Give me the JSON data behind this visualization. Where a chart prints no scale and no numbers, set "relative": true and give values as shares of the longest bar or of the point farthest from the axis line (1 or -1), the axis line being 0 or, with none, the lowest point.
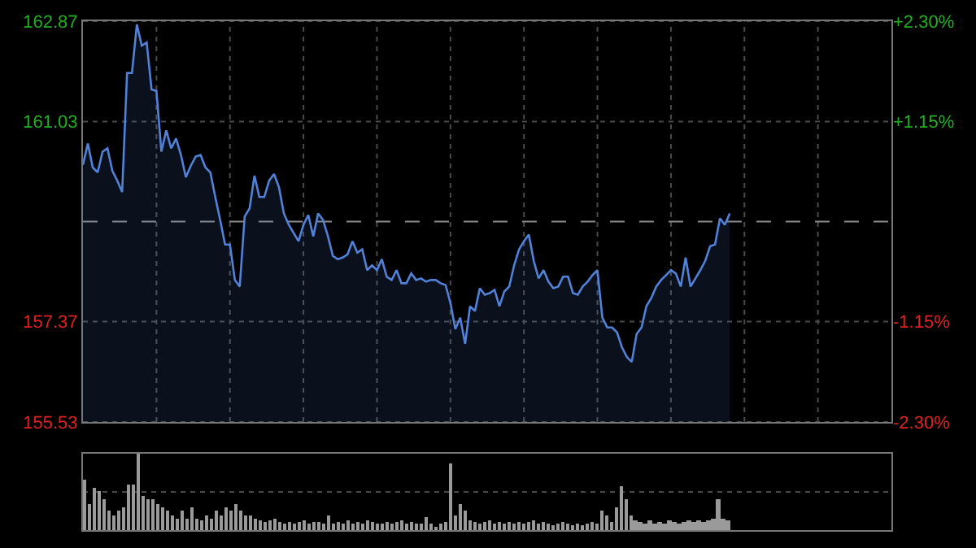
{
  "chart_data": [
    {
      "type": "area",
      "categories": [
        null,
        null,
        null,
        null,
        null,
        null,
        null,
        null,
        null,
        null,
        null,
        null,
        null,
        null,
        null,
        null,
        null,
        null,
        null,
        null,
        null,
        null,
        null,
        null,
        null,
        null,
        null,
        null,
        null,
        null,
        null,
        null,
        null,
        null,
        null,
        null,
        null,
        null,
        null,
        null,
        null,
        null,
        null,
        null,
        null,
        null,
        null,
        null,
        null,
        null,
        null,
        null,
        null,
        null,
        null,
        null,
        null,
        null,
        null,
        null,
        null,
        null,
        null,
        null,
        null,
        null,
        null,
        null,
        null,
        null,
        null,
        null,
        null,
        null,
        null,
        null,
        null,
        null,
        null,
        null,
        null,
        null,
        null,
        null,
        null,
        null,
        null,
        null,
        null,
        null,
        null,
        null,
        null,
        null,
        null,
        null,
        null,
        null,
        null,
        null,
        null,
        null,
        null,
        null,
        null,
        null,
        null,
        null,
        null,
        null,
        null,
        null,
        null,
        null,
        null,
        null,
        null,
        null,
        null,
        null,
        null,
        null,
        null,
        null,
        null,
        null,
        null,
        null,
        null,
        null,
        null,
        null,
        null,
        null,
        null,
        null,
        null,
        null,
        null,
        null,
        null,
        null,
        null,
        null,
        null,
        null,
        null,
        null,
        null,
        null,
        null,
        null,
        null,
        null,
        null,
        null,
        null,
        null,
        null,
        null,
        null,
        null,
        null,
        null,
        null,
        null
      ],
      "series": [
        {
          "color": "#4f82d8",
          "values": [
            160.24,
            160.63,
            160.19,
            160.1,
            160.48,
            160.54,
            160.13,
            159.95,
            159.74,
            161.92,
            161.92,
            162.81,
            162.42,
            162.48,
            161.62,
            161.59,
            160.48,
            160.87,
            160.54,
            160.72,
            160.42,
            160.01,
            160.22,
            160.39,
            160.42,
            160.19,
            160.1,
            159.65,
            159.23,
            158.78,
            158.78,
            158.13,
            158.01,
            159.29,
            159.44,
            160.04,
            159.65,
            159.65,
            159.95,
            160.07,
            159.83,
            159.35,
            159.14,
            158.99,
            158.84,
            159.14,
            159.32,
            158.93,
            159.35,
            159.23,
            158.93,
            158.57,
            158.51,
            158.54,
            158.6,
            158.84,
            158.63,
            158.69,
            158.31,
            158.4,
            158.31,
            158.51,
            158.19,
            158.13,
            158.31,
            158.07,
            158.07,
            158.25,
            158.13,
            158.16,
            158.1,
            158.13,
            158.13,
            158.07,
            158.04,
            157.71,
            157.23,
            157.44,
            156.96,
            157.65,
            157.56,
            157.98,
            157.86,
            157.89,
            157.95,
            157.65,
            157.92,
            158.01,
            158.4,
            158.69,
            158.84,
            158.96,
            158.48,
            158.16,
            158.31,
            158.1,
            157.98,
            158.01,
            158.19,
            158.19,
            157.89,
            157.86,
            158.01,
            158.1,
            158.22,
            158.31,
            157.44,
            157.26,
            157.26,
            157.17,
            156.9,
            156.72,
            156.63,
            157.14,
            157.26,
            157.65,
            157.8,
            158.01,
            158.13,
            158.22,
            158.31,
            158.25,
            158.01,
            158.54,
            158.01,
            158.16,
            158.31,
            158.48,
            158.75,
            158.78,
            159.26,
            159.14,
            159.35,
            null,
            null,
            null,
            null,
            null,
            null,
            null,
            null,
            null,
            null,
            null,
            null,
            null,
            null,
            null,
            null,
            null,
            null,
            null,
            null,
            null,
            null,
            null,
            null,
            null,
            null,
            null,
            null,
            null,
            null,
            null,
            null,
            null
          ]
        }
      ],
      "ylim": [
        155.53,
        162.87
      ],
      "yticks": [
        155.53,
        157.37,
        161.03,
        162.87
      ],
      "y2lim": [
        -2.3,
        2.3
      ],
      "y2ticks": [
        {
          "value": 2.3,
          "label": "+2.30%"
        },
        {
          "value": 1.15,
          "label": "+1.15%"
        },
        {
          "value": -1.15,
          "label": "-1.15%"
        },
        {
          "value": -2.3,
          "label": "-2.30%"
        }
      ],
      "ref_lines": [
        {
          "axis": "y",
          "value": 159.2,
          "line_style": "dashed"
        }
      ],
      "grid": true,
      "tick_labels": "y"
    },
    {
      "type": "bar",
      "relative": true,
      "categories": [
        null,
        null,
        null,
        null,
        null,
        null,
        null,
        null,
        null,
        null,
        null,
        null,
        null,
        null,
        null,
        null,
        null,
        null,
        null,
        null,
        null,
        null,
        null,
        null,
        null,
        null,
        null,
        null,
        null,
        null,
        null,
        null,
        null,
        null,
        null,
        null,
        null,
        null,
        null,
        null,
        null,
        null,
        null,
        null,
        null,
        null,
        null,
        null,
        null,
        null,
        null,
        null,
        null,
        null,
        null,
        null,
        null,
        null,
        null,
        null,
        null,
        null,
        null,
        null,
        null,
        null,
        null,
        null,
        null,
        null,
        null,
        null,
        null,
        null,
        null,
        null,
        null,
        null,
        null,
        null,
        null,
        null,
        null,
        null,
        null,
        null,
        null,
        null,
        null,
        null,
        null,
        null,
        null,
        null,
        null,
        null,
        null,
        null,
        null,
        null,
        null,
        null,
        null,
        null,
        null,
        null,
        null,
        null,
        null,
        null,
        null,
        null,
        null,
        null,
        null,
        null,
        null,
        null,
        null,
        null,
        null,
        null,
        null,
        null,
        null,
        null,
        null,
        null,
        null,
        null,
        null,
        null,
        null,
        null,
        null,
        null,
        null,
        null,
        null,
        null,
        null,
        null,
        null,
        null,
        null,
        null,
        null,
        null,
        null,
        null,
        null,
        null,
        null,
        null,
        null,
        null,
        null,
        null,
        null,
        null,
        null,
        null,
        null,
        null,
        null,
        null
      ],
      "series": [
        {
          "color": "#9a9a9a",
          "values": [
            0.65,
            0.35,
            0.55,
            0.5,
            0.4,
            0.25,
            0.2,
            0.25,
            0.3,
            0.6,
            0.6,
            1.0,
            0.45,
            0.4,
            0.4,
            0.35,
            0.3,
            0.25,
            0.2,
            0.15,
            0.25,
            0.15,
            0.3,
            0.15,
            0.12,
            0.2,
            0.15,
            0.25,
            0.2,
            0.3,
            0.25,
            0.35,
            0.25,
            0.2,
            0.2,
            0.15,
            0.12,
            0.1,
            0.12,
            0.15,
            0.1,
            0.08,
            0.1,
            0.08,
            0.1,
            0.12,
            0.08,
            0.1,
            0.1,
            0.08,
            0.2,
            0.08,
            0.1,
            0.08,
            0.12,
            0.08,
            0.1,
            0.08,
            0.12,
            0.1,
            0.08,
            0.08,
            0.1,
            0.08,
            0.1,
            0.12,
            0.08,
            0.1,
            0.08,
            0.08,
            0.18,
            0.08,
            0.05,
            0.08,
            0.1,
            0.88,
            0.2,
            0.35,
            0.25,
            0.12,
            0.1,
            0.08,
            0.1,
            0.12,
            0.08,
            0.1,
            0.08,
            0.1,
            0.08,
            0.1,
            0.08,
            0.1,
            0.12,
            0.08,
            0.1,
            0.08,
            0.06,
            0.08,
            0.1,
            0.08,
            0.06,
            0.08,
            0.06,
            0.08,
            0.1,
            0.08,
            0.25,
            0.2,
            0.1,
            0.3,
            0.58,
            0.4,
            0.2,
            0.12,
            0.1,
            0.08,
            0.12,
            0.08,
            0.1,
            0.08,
            0.12,
            0.1,
            0.08,
            0.1,
            0.12,
            0.1,
            0.12,
            0.1,
            0.12,
            0.15,
            0.4,
            0.15,
            0.12,
            null,
            null,
            null,
            null,
            null,
            null,
            null,
            null,
            null,
            null,
            null,
            null,
            null,
            null,
            null,
            null,
            null,
            null,
            null,
            null,
            null,
            null,
            null,
            null,
            null,
            null,
            null,
            null,
            null,
            null,
            null,
            null,
            null
          ]
        }
      ],
      "ref_lines": [
        {
          "axis": "y",
          "value": 0.5,
          "color": "#4a4a4a",
          "line_style": "dotted"
        }
      ],
      "tick_labels": false
    }
  ]
}
